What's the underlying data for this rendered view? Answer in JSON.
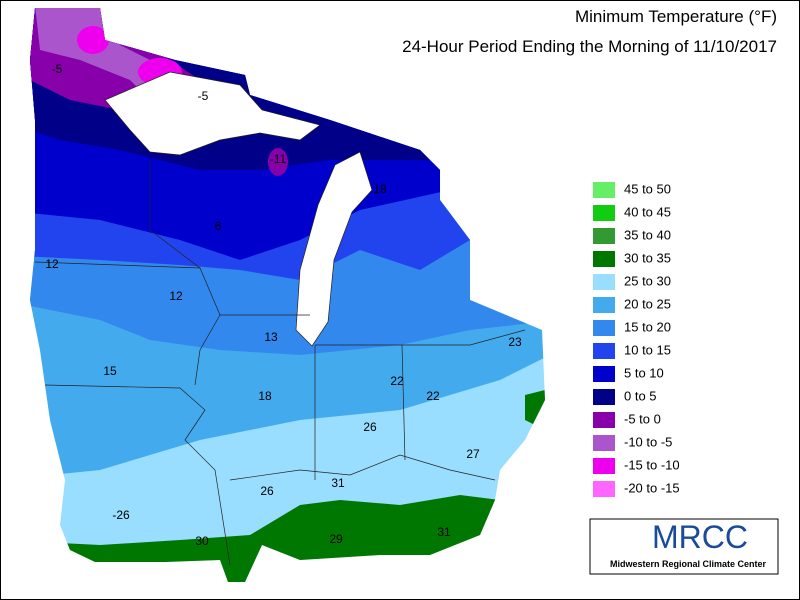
{
  "title": "Minimum Temperature (°F)",
  "subtitle": "24-Hour Period Ending the Morning of 11/10/2017",
  "legend": [
    {
      "label": "45 to 50",
      "color": "#66ee66"
    },
    {
      "label": "40 to 45",
      "color": "#11cc11"
    },
    {
      "label": "35 to 40",
      "color": "#339933"
    },
    {
      "label": "30 to 35",
      "color": "#007700"
    },
    {
      "label": "25 to 30",
      "color": "#99ddff"
    },
    {
      "label": "20 to 25",
      "color": "#44aaee"
    },
    {
      "label": "15 to 20",
      "color": "#3388ee"
    },
    {
      "label": "10 to 15",
      "color": "#2244ee"
    },
    {
      "label": "5 to 10",
      "color": "#0000cc"
    },
    {
      "label": "0 to 5",
      "color": "#000088"
    },
    {
      "label": "-5 to 0",
      "color": "#8800aa"
    },
    {
      "label": "-10 to -5",
      "color": "#aa55cc"
    },
    {
      "label": "-15 to -10",
      "color": "#ee00ee"
    },
    {
      "label": "-20 to -15",
      "color": "#ff66ff"
    }
  ],
  "stations": [
    -5,
    -5,
    -11,
    18,
    6,
    12,
    12,
    13,
    23,
    15,
    22,
    22,
    18,
    26,
    27,
    31,
    26,
    -26,
    31,
    29,
    30
  ],
  "logo": {
    "name": "MRCC",
    "subtitle": "Midwestern Regional Climate Center"
  }
}
